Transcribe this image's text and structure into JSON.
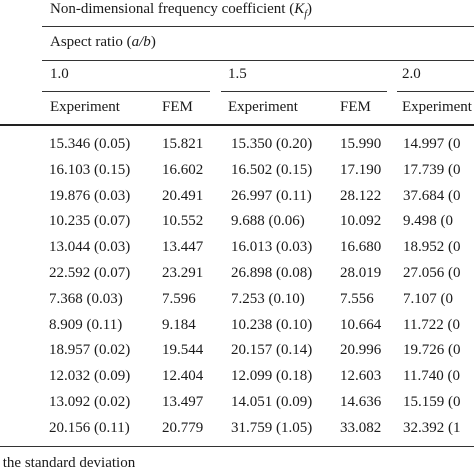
{
  "table": {
    "title_prefix": "Non-dimensional frequency coefficient (",
    "title_var": "K",
    "title_sub": "f",
    "title_suffix": ")",
    "aspect_prefix": "Aspect ratio (",
    "aspect_var": "a/b",
    "aspect_suffix": ")",
    "ratios": [
      "1.0",
      "1.5",
      "2.0"
    ],
    "col_headers": [
      "Experiment",
      "FEM",
      "Experiment",
      "FEM",
      "Experiment"
    ],
    "rows": [
      [
        "15.346 (0.05)",
        "15.821",
        "15.350 (0.20)",
        "15.990",
        "14.997 (0"
      ],
      [
        "16.103 (0.15)",
        "16.602",
        "16.502 (0.15)",
        "17.190",
        "17.739 (0"
      ],
      [
        "19.876 (0.03)",
        "20.491",
        "26.997 (0.11)",
        "28.122",
        "37.684 (0"
      ],
      [
        "10.235 (0.07)",
        "10.552",
        "9.688 (0.06)",
        "10.092",
        "9.498 (0"
      ],
      [
        "13.044 (0.03)",
        "13.447",
        "16.013 (0.03)",
        "16.680",
        "18.952 (0"
      ],
      [
        "22.592 (0.07)",
        "23.291",
        "26.898 (0.08)",
        "28.019",
        "27.056 (0"
      ],
      [
        "7.368 (0.03)",
        "7.596",
        "7.253 (0.10)",
        "7.556",
        "7.107 (0"
      ],
      [
        "8.909 (0.11)",
        "9.184",
        "10.238 (0.10)",
        "10.664",
        "11.722 (0"
      ],
      [
        "18.957 (0.02)",
        "19.544",
        "20.157 (0.14)",
        "20.996",
        "19.726 (0"
      ],
      [
        "12.032 (0.09)",
        "12.404",
        "12.099 (0.18)",
        "12.603",
        "11.740 (0"
      ],
      [
        "13.092 (0.02)",
        "13.497",
        "14.051 (0.09)",
        "14.636",
        "15.159 (0"
      ],
      [
        "20.156 (0.11)",
        "20.779",
        "31.759 (1.05)",
        "33.082",
        "32.392 (1"
      ]
    ],
    "footnote": "the standard deviation"
  }
}
